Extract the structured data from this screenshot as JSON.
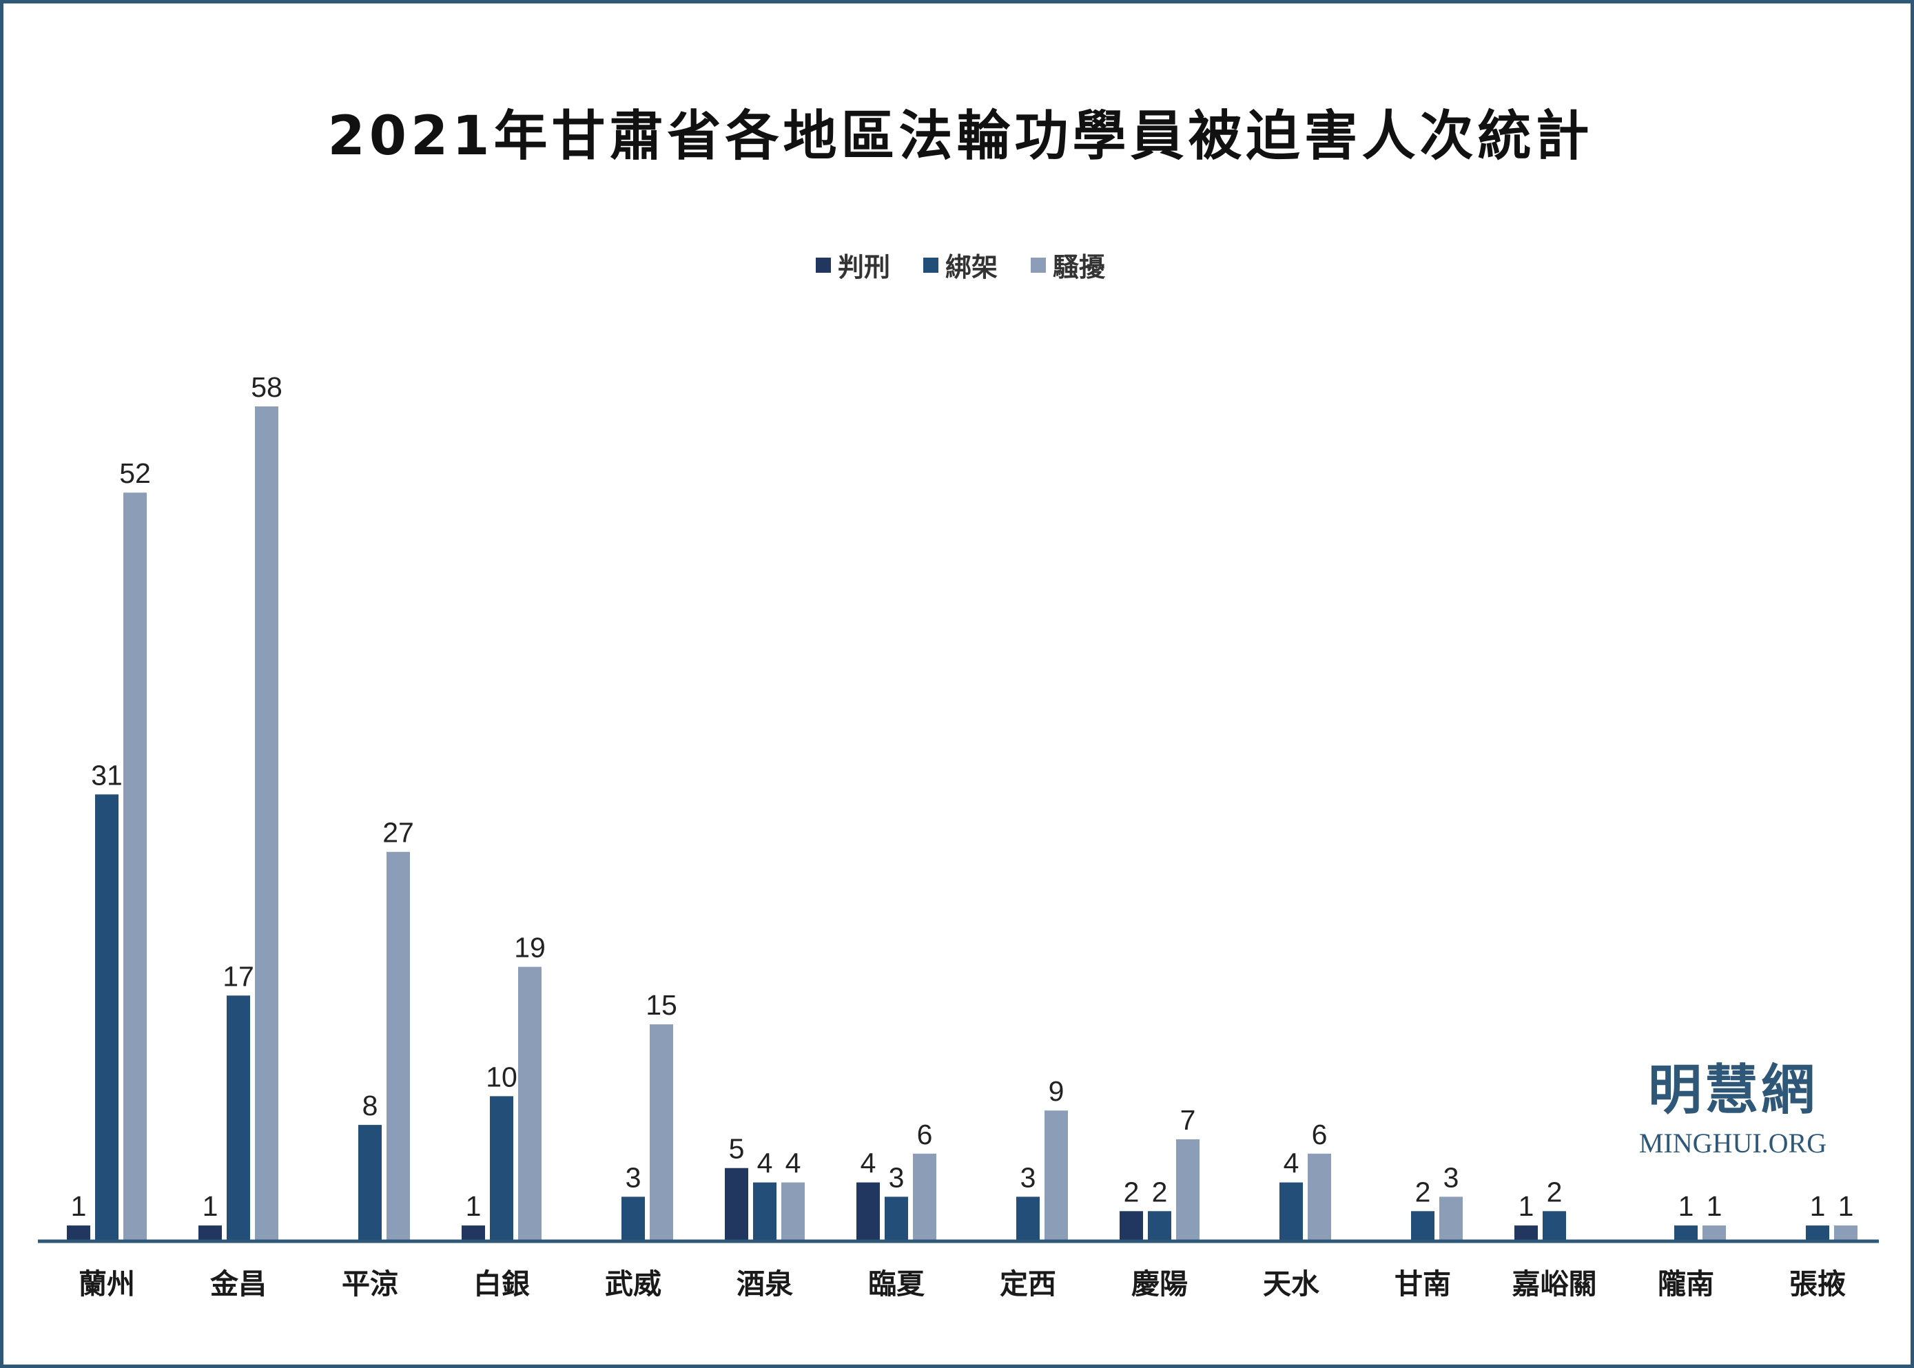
{
  "chart_data": {
    "type": "bar",
    "title": "2021年甘肅省各地區法輪功學員被迫害人次統計",
    "categories": [
      "蘭州",
      "金昌",
      "平涼",
      "白銀",
      "武威",
      "酒泉",
      "臨夏",
      "定西",
      "慶陽",
      "天水",
      "甘南",
      "嘉峪關",
      "隴南",
      "張掖"
    ],
    "series": [
      {
        "name": "判刑",
        "color": "#22375f",
        "values": [
          1,
          1,
          null,
          1,
          null,
          5,
          4,
          null,
          2,
          null,
          null,
          1,
          null,
          null
        ]
      },
      {
        "name": "綁架",
        "color": "#234e78",
        "values": [
          31,
          17,
          8,
          10,
          3,
          4,
          3,
          3,
          2,
          4,
          2,
          2,
          1,
          1
        ]
      },
      {
        "name": "騷擾",
        "color": "#8b9db7",
        "values": [
          52,
          58,
          27,
          19,
          15,
          4,
          6,
          9,
          7,
          6,
          3,
          null,
          1,
          1
        ]
      }
    ],
    "ylim": [
      0,
      58
    ],
    "legend_position": "top-center",
    "grid": false,
    "axis_color": "#2e5778"
  },
  "watermark": {
    "chinese": "明慧網",
    "english": "MINGHUI.ORG"
  }
}
